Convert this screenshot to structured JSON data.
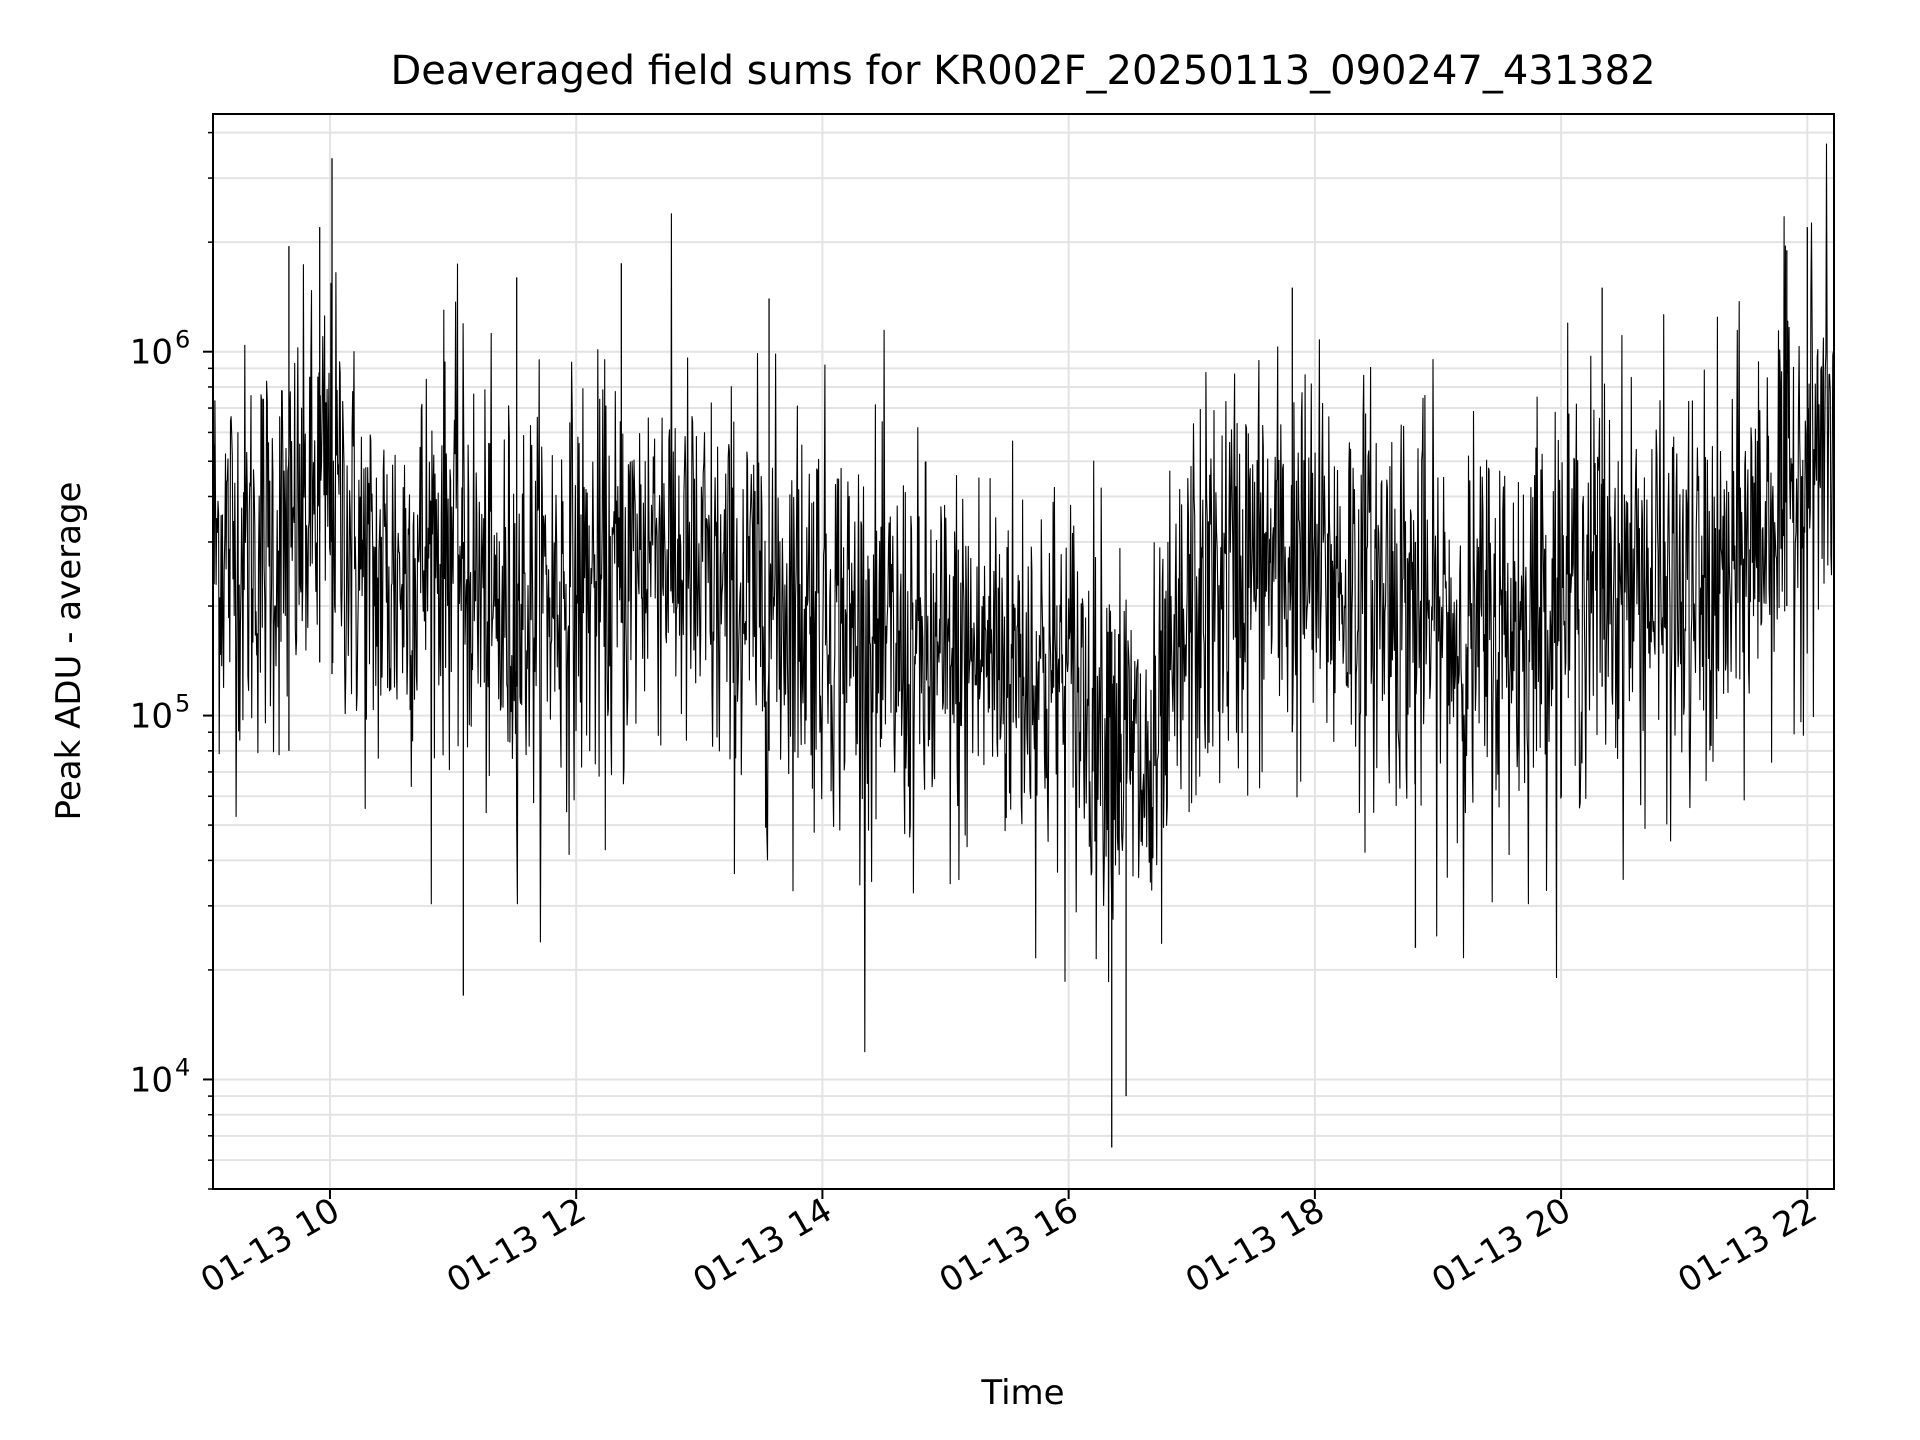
{
  "chart_data": {
    "type": "line",
    "title": "Deaveraged field sums for KR002F_20250113_090247_431382",
    "xlabel": "Time",
    "ylabel": "Peak ADU - average",
    "y_scale": "log",
    "ylim": [
      5000,
      4500000
    ],
    "xlim": [
      "2025-01-13T09:03",
      "2025-01-13T22:13"
    ],
    "grid": true,
    "line_color": "#000000",
    "x_ticks": [
      {
        "time": "2025-01-13T10:00",
        "label": "01-13 10"
      },
      {
        "time": "2025-01-13T12:00",
        "label": "01-13 12"
      },
      {
        "time": "2025-01-13T14:00",
        "label": "01-13 14"
      },
      {
        "time": "2025-01-13T16:00",
        "label": "01-13 16"
      },
      {
        "time": "2025-01-13T18:00",
        "label": "01-13 18"
      },
      {
        "time": "2025-01-13T20:00",
        "label": "01-13 20"
      },
      {
        "time": "2025-01-13T22:00",
        "label": "01-13 22"
      }
    ],
    "y_ticks": [
      {
        "value": 10000,
        "base": "10",
        "exp": "4"
      },
      {
        "value": 100000,
        "base": "10",
        "exp": "5"
      },
      {
        "value": 1000000,
        "base": "10",
        "exp": "6"
      }
    ],
    "series": [
      {
        "x": [
          "2025-01-13T09:03",
          "2025-01-13T09:20",
          "2025-01-13T09:40",
          "2025-01-13T10:00",
          "2025-01-13T10:20",
          "2025-01-13T10:40",
          "2025-01-13T11:00",
          "2025-01-13T11:20",
          "2025-01-13T11:40",
          "2025-01-13T12:00",
          "2025-01-13T12:20",
          "2025-01-13T12:40",
          "2025-01-13T13:00",
          "2025-01-13T13:20",
          "2025-01-13T13:40",
          "2025-01-13T14:00",
          "2025-01-13T14:20",
          "2025-01-13T14:40",
          "2025-01-13T15:00",
          "2025-01-13T15:20",
          "2025-01-13T15:40",
          "2025-01-13T16:00",
          "2025-01-13T16:20",
          "2025-01-13T16:40",
          "2025-01-13T17:00",
          "2025-01-13T17:20",
          "2025-01-13T17:40",
          "2025-01-13T18:00",
          "2025-01-13T18:20",
          "2025-01-13T18:40",
          "2025-01-13T19:00",
          "2025-01-13T19:20",
          "2025-01-13T19:40",
          "2025-01-13T20:00",
          "2025-01-13T20:20",
          "2025-01-13T20:40",
          "2025-01-13T21:00",
          "2025-01-13T21:20",
          "2025-01-13T21:40",
          "2025-01-13T22:00",
          "2025-01-13T22:13"
        ],
        "y": [
          300000,
          280000,
          300000,
          450000,
          220000,
          260000,
          320000,
          180000,
          210000,
          230000,
          220000,
          330000,
          220000,
          200000,
          210000,
          200000,
          160000,
          140000,
          130000,
          150000,
          140000,
          120000,
          100000,
          60000,
          190000,
          250000,
          260000,
          250000,
          230000,
          220000,
          170000,
          160000,
          180000,
          220000,
          240000,
          230000,
          200000,
          220000,
          350000,
          500000,
          600000
        ]
      }
    ],
    "spikes": [
      {
        "time": "2025-01-13T09:55",
        "low": 140000,
        "high": 2200000
      },
      {
        "time": "2025-01-13T10:01",
        "low": 130000,
        "high": 3400000
      },
      {
        "time": "2025-01-13T09:40",
        "low": 80000,
        "high": 1950000
      },
      {
        "time": "2025-01-13T11:05",
        "low": 17000,
        "high": 300000
      },
      {
        "time": "2025-01-13T11:31",
        "low": 120000,
        "high": 1600000
      },
      {
        "time": "2025-01-13T12:22",
        "low": 180000,
        "high": 1750000
      },
      {
        "time": "2025-01-13T13:34",
        "low": 80000,
        "high": 1400000
      },
      {
        "time": "2025-01-13T16:21",
        "low": 6500,
        "high": 170000
      },
      {
        "time": "2025-01-13T16:28",
        "low": 9000,
        "high": 150000
      },
      {
        "time": "2025-01-13T18:49",
        "low": 23000,
        "high": 300000
      },
      {
        "time": "2025-01-13T17:49",
        "low": 90000,
        "high": 1500000
      },
      {
        "time": "2025-01-13T20:20",
        "low": 120000,
        "high": 1500000
      },
      {
        "time": "2025-01-13T21:50",
        "low": 200000,
        "high": 1900000
      },
      {
        "time": "2025-01-13T22:00",
        "low": 300000,
        "high": 2200000
      }
    ]
  }
}
